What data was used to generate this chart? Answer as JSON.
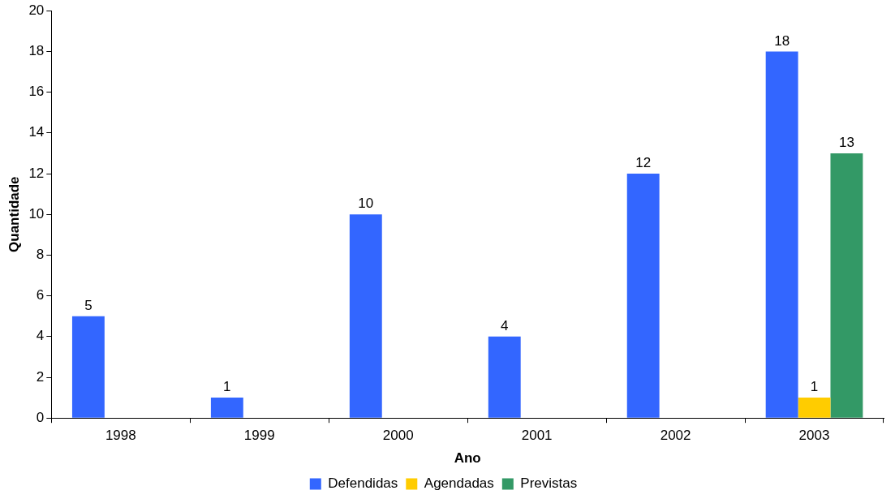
{
  "chart_data": {
    "type": "bar",
    "xlabel": "Ano",
    "ylabel": "Quantidade",
    "categories": [
      "1998",
      "1999",
      "2000",
      "2001",
      "2002",
      "2003"
    ],
    "series": [
      {
        "name": "Defendidas",
        "color": "#3366ff",
        "values": [
          5,
          1,
          10,
          4,
          12,
          18
        ]
      },
      {
        "name": "Agendadas",
        "color": "#ffcc00",
        "values": [
          null,
          null,
          null,
          null,
          null,
          1
        ]
      },
      {
        "name": "Previstas",
        "color": "#339966",
        "values": [
          null,
          null,
          null,
          null,
          null,
          13
        ]
      }
    ],
    "ylim": [
      0,
      20
    ],
    "yticks": [
      0,
      2,
      4,
      6,
      8,
      10,
      12,
      14,
      16,
      18,
      20
    ],
    "grid": false,
    "legend": "bottom",
    "data_labels": true
  }
}
